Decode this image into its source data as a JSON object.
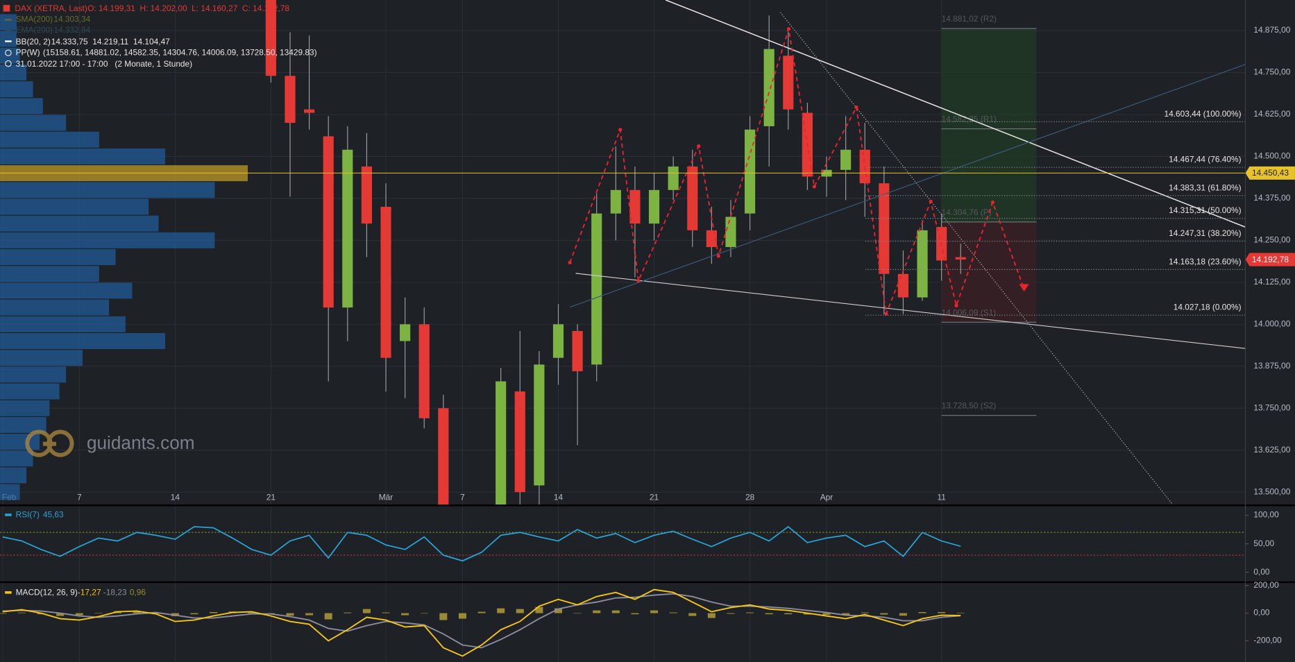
{
  "header": {
    "instrument": "DAX (XETRA, Last)",
    "quote": "O: 14.199,31  H: 14.202,00  L: 14.160,27  C: 14.192,78",
    "studies": [
      {
        "name": "SMA(200)",
        "value": "14.303,34"
      },
      {
        "name": "EMA(200)",
        "value": "14.332,84"
      },
      {
        "name": "BB(20, 2)",
        "value": "14.333,75  14.219,11  14.104,47"
      },
      {
        "name": "PP(W)",
        "value": "(15158.61, 14881.02, 14582.35, 14304.76, 14006.09, 13728.50, 13429.83)"
      }
    ],
    "range": "31.01.2022 17:00 - 17:00   (2 Monate, 1 Stunde)"
  },
  "watermark": "guidants.com",
  "chart_data": [
    {
      "type": "candlestick",
      "colors": {
        "up": "#7cb342",
        "down": "#e53935"
      },
      "x": [
        14,
        15,
        16,
        17,
        18,
        19,
        20,
        21,
        22,
        23,
        26,
        27,
        28,
        29,
        30,
        31,
        32,
        33,
        34,
        35,
        36,
        37,
        38,
        39,
        40,
        41,
        42,
        43,
        44,
        45,
        46,
        47,
        48,
        49,
        50
      ],
      "open": [
        14980,
        14740,
        14640,
        14560,
        14050,
        14470,
        14350,
        13950,
        14000,
        13750,
        13400,
        13800,
        13520,
        13900,
        13980,
        13880,
        14330,
        14400,
        14300,
        14400,
        14470,
        14280,
        14230,
        14330,
        14590,
        14800,
        14630,
        14440,
        14460,
        14520,
        14420,
        14150,
        14080,
        14290,
        14200
      ],
      "high": [
        15000,
        14870,
        14860,
        14620,
        14590,
        14570,
        14420,
        14080,
        14050,
        13790,
        13870,
        13980,
        13920,
        14060,
        14000,
        14390,
        14530,
        14470,
        14450,
        14500,
        14520,
        14350,
        14370,
        14620,
        14920,
        14870,
        14660,
        14500,
        14620,
        14600,
        14470,
        14220,
        14310,
        14330,
        14240
      ],
      "low": [
        14720,
        14380,
        14580,
        13830,
        13950,
        14200,
        13800,
        13780,
        13690,
        13400,
        13300,
        13450,
        13460,
        13820,
        13640,
        13830,
        14250,
        14140,
        14250,
        14370,
        14230,
        14180,
        14200,
        14280,
        14470,
        14580,
        14400,
        14380,
        14370,
        14320,
        14030,
        14030,
        14070,
        14130,
        14150
      ],
      "close": [
        14740,
        14600,
        14630,
        14050,
        14520,
        14300,
        13900,
        14000,
        13720,
        13450,
        13830,
        13500,
        13880,
        14000,
        13860,
        14330,
        14400,
        14300,
        14400,
        14470,
        14280,
        14230,
        14320,
        14580,
        14820,
        14640,
        14440,
        14460,
        14520,
        14420,
        14150,
        14080,
        14280,
        14190,
        14193
      ],
      "xlim": [
        -0.14,
        64.86
      ],
      "xticks": [
        {
          "value": 0,
          "label": "Feb"
        },
        {
          "value": 4,
          "label": "7"
        },
        {
          "value": 9,
          "label": "14"
        },
        {
          "value": 14,
          "label": "21"
        },
        {
          "value": 20,
          "label": "Mär"
        },
        {
          "value": 24,
          "label": "7"
        },
        {
          "value": 29,
          "label": "14"
        },
        {
          "value": 34,
          "label": "21"
        },
        {
          "value": 39,
          "label": "28"
        },
        {
          "value": 43,
          "label": "Apr"
        },
        {
          "value": 49,
          "label": "11"
        }
      ],
      "ylim": [
        13463,
        14966
      ],
      "yticks": [
        {
          "value": 13500,
          "label": "13.500,00"
        },
        {
          "value": 13625,
          "label": "13.625,00"
        },
        {
          "value": 13750,
          "label": "13.750,00"
        },
        {
          "value": 13875,
          "label": "13.875,00"
        },
        {
          "value": 14000,
          "label": "14.000,00"
        },
        {
          "value": 14125,
          "label": "14.125,00"
        },
        {
          "value": 14250,
          "label": "14.250,00"
        },
        {
          "value": 14375,
          "label": "14.375,00"
        },
        {
          "value": 14500,
          "label": "14.500,00"
        },
        {
          "value": 14625,
          "label": "14.625,00"
        },
        {
          "value": 14750,
          "label": "14.750,00"
        },
        {
          "value": 14875,
          "label": "14.875,00"
        }
      ],
      "grid": true,
      "price_lines": [
        {
          "value": 14450.43,
          "label": "14.450,43",
          "color": "#e8c22a"
        },
        {
          "value": 14192.78,
          "label": "14.192,78",
          "color": "#e53935"
        }
      ],
      "fib_levels": [
        {
          "value": 14603.44,
          "label": "14.603,44 (100.00%)"
        },
        {
          "value": 14467.44,
          "label": "14.467,44 (76.40%)"
        },
        {
          "value": 14383.31,
          "label": "14.383,31 (61.80%)"
        },
        {
          "value": 14315.31,
          "label": "14.315,31 (50.00%)"
        },
        {
          "value": 14247.31,
          "label": "14.247,31 (38.20%)"
        },
        {
          "value": 14163.18,
          "label": "14.163,18 (23.60%)"
        },
        {
          "value": 14027.18,
          "label": "14.027,18 (0.00%)"
        }
      ],
      "pivots": [
        {
          "value": 14881.02,
          "label": "14.881,02 (R2)"
        },
        {
          "value": 14582.35,
          "label": "14.582,35 (R1)"
        },
        {
          "value": 14304.76,
          "label": "14.304,76 (P)"
        },
        {
          "value": 14006.09,
          "label": "14.006,09 (S1)"
        },
        {
          "value": 13728.5,
          "label": "13.728,50 (S2)"
        }
      ],
      "volume_profile": {
        "color": "#1f5f9e",
        "poc_color": "#c9a227",
        "vlim": [
          0,
          100
        ],
        "levels": [
          14900,
          14850,
          14800,
          14750,
          14700,
          14650,
          14600,
          14550,
          14500,
          14450,
          14400,
          14350,
          14300,
          14250,
          14200,
          14150,
          14100,
          14050,
          14000,
          13950,
          13900,
          13850,
          13800,
          13750,
          13700,
          13650,
          13600,
          13550,
          13500
        ],
        "values": [
          5,
          5,
          6,
          8,
          10,
          13,
          20,
          30,
          50,
          75,
          65,
          45,
          48,
          65,
          35,
          30,
          40,
          33,
          38,
          50,
          25,
          20,
          18,
          15,
          14,
          12,
          10,
          8,
          6
        ]
      }
    },
    {
      "type": "line",
      "title": "RSI(7)",
      "color": "#29a3d6",
      "last_label": "45,63",
      "x": [
        0,
        1,
        2,
        3,
        4,
        5,
        6,
        7,
        8,
        9,
        10,
        11,
        12,
        13,
        14,
        15,
        16,
        17,
        18,
        19,
        20,
        21,
        22,
        23,
        24,
        25,
        26,
        27,
        28,
        29,
        30,
        31,
        32,
        33,
        34,
        35,
        36,
        37,
        38,
        39,
        40,
        41,
        42,
        43,
        44,
        45,
        46,
        47,
        48,
        49,
        50
      ],
      "series": [
        {
          "color": "#29a3d6",
          "values": [
            62,
            55,
            40,
            28,
            45,
            60,
            55,
            70,
            65,
            58,
            80,
            78,
            60,
            40,
            30,
            55,
            65,
            25,
            70,
            65,
            48,
            40,
            62,
            30,
            20,
            35,
            65,
            70,
            62,
            55,
            75,
            60,
            68,
            52,
            65,
            72,
            58,
            45,
            60,
            70,
            55,
            80,
            52,
            60,
            65,
            45,
            55,
            28,
            70,
            55,
            45.63
          ]
        }
      ],
      "levels": [
        {
          "value": 70,
          "color": "#8a8a2a"
        },
        {
          "value": 30,
          "color": "#a8323a"
        }
      ],
      "xlim": [
        -0.14,
        64.86
      ],
      "ylim": [
        -16,
        116
      ],
      "yticks": [
        {
          "value": 0,
          "label": "0,00"
        },
        {
          "value": 50,
          "label": "50,00"
        },
        {
          "value": 100,
          "label": "100,00"
        }
      ]
    },
    {
      "type": "macd",
      "title": "MACD(12, 26, 9)",
      "color": "#f5c518",
      "x": [
        0,
        1,
        2,
        3,
        4,
        5,
        6,
        7,
        8,
        9,
        10,
        11,
        12,
        13,
        14,
        15,
        16,
        17,
        18,
        19,
        20,
        21,
        22,
        23,
        24,
        25,
        26,
        27,
        28,
        29,
        30,
        31,
        32,
        33,
        34,
        35,
        36,
        37,
        38,
        39,
        40,
        41,
        42,
        43,
        44,
        45,
        46,
        47,
        48,
        49,
        50
      ],
      "series": [
        {
          "color": "#f5c518",
          "last_label": "-17,27",
          "values": [
            10,
            25,
            0,
            -40,
            -50,
            -25,
            10,
            15,
            -5,
            -60,
            -50,
            -20,
            5,
            10,
            -20,
            -60,
            -80,
            -200,
            -120,
            -30,
            -50,
            -100,
            -90,
            -250,
            -310,
            -230,
            -120,
            -60,
            50,
            100,
            60,
            120,
            150,
            100,
            170,
            150,
            80,
            10,
            40,
            60,
            30,
            20,
            0,
            -20,
            -40,
            -10,
            -50,
            -90,
            -40,
            -15,
            -17.27
          ]
        },
        {
          "color": "#8c8c9c",
          "last_label": "-18,23",
          "values": [
            15,
            20,
            15,
            0,
            -20,
            -30,
            -20,
            -5,
            5,
            -15,
            -35,
            -35,
            -20,
            -5,
            -5,
            -25,
            -50,
            -110,
            -130,
            -90,
            -60,
            -70,
            -85,
            -150,
            -230,
            -250,
            -190,
            -120,
            -40,
            30,
            60,
            80,
            110,
            115,
            130,
            140,
            120,
            80,
            50,
            50,
            45,
            35,
            20,
            5,
            -15,
            -20,
            -30,
            -55,
            -55,
            -30,
            -18.23
          ]
        }
      ],
      "histogram": {
        "color": "#9a8a35",
        "last_label": "0,96",
        "values": [
          -4,
          4,
          -8,
          -20,
          -15,
          3,
          15,
          10,
          -5,
          -22,
          -8,
          8,
          12,
          8,
          -8,
          -18,
          -15,
          -45,
          5,
          30,
          5,
          -15,
          -3,
          -50,
          -40,
          10,
          35,
          30,
          45,
          35,
          0,
          20,
          20,
          -8,
          20,
          5,
          -20,
          -35,
          -5,
          5,
          -8,
          -8,
          -10,
          -12,
          -12,
          5,
          -10,
          -18,
          8,
          8,
          0.96
        ]
      },
      "xlim": [
        -0.14,
        64.86
      ],
      "ylim": [
        -355,
        218
      ],
      "yticks": [
        {
          "value": -200,
          "label": "-200,00"
        },
        {
          "value": 0,
          "label": "0,00"
        },
        {
          "value": 200,
          "label": "200,00"
        }
      ]
    }
  ]
}
